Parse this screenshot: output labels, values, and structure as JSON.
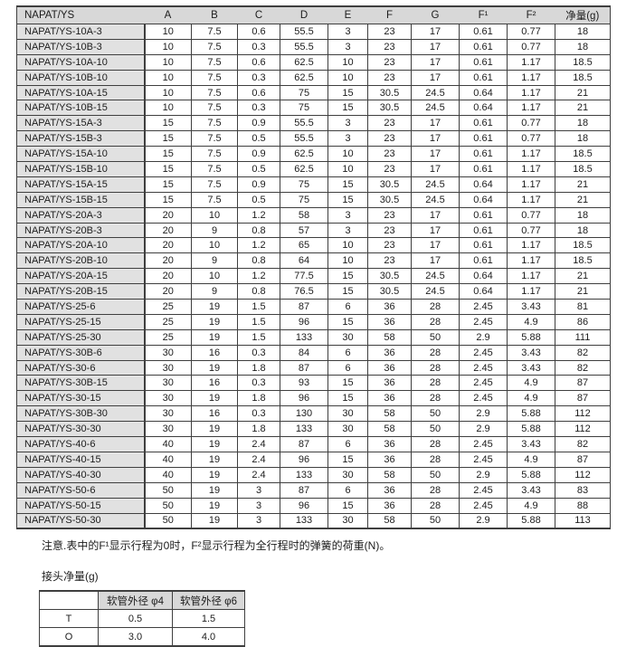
{
  "colors": {
    "header_bg": "#d8d8d8",
    "row_label_bg": "#e1e1e1",
    "border": "#3f3f3f",
    "page_bg": "#ffffff"
  },
  "main_table": {
    "corner_header": "NAPAT/YS",
    "column_headers": [
      "A",
      "B",
      "C",
      "D",
      "E",
      "F",
      "G",
      "F¹",
      "F²",
      "净量(g)"
    ],
    "rows": [
      [
        "NAPAT/YS-10A-3",
        "10",
        "7.5",
        "0.6",
        "55.5",
        "3",
        "23",
        "17",
        "0.61",
        "0.77",
        "18"
      ],
      [
        "NAPAT/YS-10B-3",
        "10",
        "7.5",
        "0.3",
        "55.5",
        "3",
        "23",
        "17",
        "0.61",
        "0.77",
        "18"
      ],
      [
        "NAPAT/YS-10A-10",
        "10",
        "7.5",
        "0.6",
        "62.5",
        "10",
        "23",
        "17",
        "0.61",
        "1.17",
        "18.5"
      ],
      [
        "NAPAT/YS-10B-10",
        "10",
        "7.5",
        "0.3",
        "62.5",
        "10",
        "23",
        "17",
        "0.61",
        "1.17",
        "18.5"
      ],
      [
        "NAPAT/YS-10A-15",
        "10",
        "7.5",
        "0.6",
        "75",
        "15",
        "30.5",
        "24.5",
        "0.64",
        "1.17",
        "21"
      ],
      [
        "NAPAT/YS-10B-15",
        "10",
        "7.5",
        "0.3",
        "75",
        "15",
        "30.5",
        "24.5",
        "0.64",
        "1.17",
        "21"
      ],
      [
        "NAPAT/YS-15A-3",
        "15",
        "7.5",
        "0.9",
        "55.5",
        "3",
        "23",
        "17",
        "0.61",
        "0.77",
        "18"
      ],
      [
        "NAPAT/YS-15B-3",
        "15",
        "7.5",
        "0.5",
        "55.5",
        "3",
        "23",
        "17",
        "0.61",
        "0.77",
        "18"
      ],
      [
        "NAPAT/YS-15A-10",
        "15",
        "7.5",
        "0.9",
        "62.5",
        "10",
        "23",
        "17",
        "0.61",
        "1.17",
        "18.5"
      ],
      [
        "NAPAT/YS-15B-10",
        "15",
        "7.5",
        "0.5",
        "62.5",
        "10",
        "23",
        "17",
        "0.61",
        "1.17",
        "18.5"
      ],
      [
        "NAPAT/YS-15A-15",
        "15",
        "7.5",
        "0.9",
        "75",
        "15",
        "30.5",
        "24.5",
        "0.64",
        "1.17",
        "21"
      ],
      [
        "NAPAT/YS-15B-15",
        "15",
        "7.5",
        "0.5",
        "75",
        "15",
        "30.5",
        "24.5",
        "0.64",
        "1.17",
        "21"
      ],
      [
        "NAPAT/YS-20A-3",
        "20",
        "10",
        "1.2",
        "58",
        "3",
        "23",
        "17",
        "0.61",
        "0.77",
        "18"
      ],
      [
        "NAPAT/YS-20B-3",
        "20",
        "9",
        "0.8",
        "57",
        "3",
        "23",
        "17",
        "0.61",
        "0.77",
        "18"
      ],
      [
        "NAPAT/YS-20A-10",
        "20",
        "10",
        "1.2",
        "65",
        "10",
        "23",
        "17",
        "0.61",
        "1.17",
        "18.5"
      ],
      [
        "NAPAT/YS-20B-10",
        "20",
        "9",
        "0.8",
        "64",
        "10",
        "23",
        "17",
        "0.61",
        "1.17",
        "18.5"
      ],
      [
        "NAPAT/YS-20A-15",
        "20",
        "10",
        "1.2",
        "77.5",
        "15",
        "30.5",
        "24.5",
        "0.64",
        "1.17",
        "21"
      ],
      [
        "NAPAT/YS-20B-15",
        "20",
        "9",
        "0.8",
        "76.5",
        "15",
        "30.5",
        "24.5",
        "0.64",
        "1.17",
        "21"
      ],
      [
        "NAPAT/YS-25-6",
        "25",
        "19",
        "1.5",
        "87",
        "6",
        "36",
        "28",
        "2.45",
        "3.43",
        "81"
      ],
      [
        "NAPAT/YS-25-15",
        "25",
        "19",
        "1.5",
        "96",
        "15",
        "36",
        "28",
        "2.45",
        "4.9",
        "86"
      ],
      [
        "NAPAT/YS-25-30",
        "25",
        "19",
        "1.5",
        "133",
        "30",
        "58",
        "50",
        "2.9",
        "5.88",
        "111"
      ],
      [
        "NAPAT/YS-30B-6",
        "30",
        "16",
        "0.3",
        "84",
        "6",
        "36",
        "28",
        "2.45",
        "3.43",
        "82"
      ],
      [
        "NAPAT/YS-30-6",
        "30",
        "19",
        "1.8",
        "87",
        "6",
        "36",
        "28",
        "2.45",
        "3.43",
        "82"
      ],
      [
        "NAPAT/YS-30B-15",
        "30",
        "16",
        "0.3",
        "93",
        "15",
        "36",
        "28",
        "2.45",
        "4.9",
        "87"
      ],
      [
        "NAPAT/YS-30-15",
        "30",
        "19",
        "1.8",
        "96",
        "15",
        "36",
        "28",
        "2.45",
        "4.9",
        "87"
      ],
      [
        "NAPAT/YS-30B-30",
        "30",
        "16",
        "0.3",
        "130",
        "30",
        "58",
        "50",
        "2.9",
        "5.88",
        "112"
      ],
      [
        "NAPAT/YS-30-30",
        "30",
        "19",
        "1.8",
        "133",
        "30",
        "58",
        "50",
        "2.9",
        "5.88",
        "112"
      ],
      [
        "NAPAT/YS-40-6",
        "40",
        "19",
        "2.4",
        "87",
        "6",
        "36",
        "28",
        "2.45",
        "3.43",
        "82"
      ],
      [
        "NAPAT/YS-40-15",
        "40",
        "19",
        "2.4",
        "96",
        "15",
        "36",
        "28",
        "2.45",
        "4.9",
        "87"
      ],
      [
        "NAPAT/YS-40-30",
        "40",
        "19",
        "2.4",
        "133",
        "30",
        "58",
        "50",
        "2.9",
        "5.88",
        "112"
      ],
      [
        "NAPAT/YS-50-6",
        "50",
        "19",
        "3",
        "87",
        "6",
        "36",
        "28",
        "2.45",
        "3.43",
        "83"
      ],
      [
        "NAPAT/YS-50-15",
        "50",
        "19",
        "3",
        "96",
        "15",
        "36",
        "28",
        "2.45",
        "4.9",
        "88"
      ],
      [
        "NAPAT/YS-50-30",
        "50",
        "19",
        "3",
        "133",
        "30",
        "58",
        "50",
        "2.9",
        "5.88",
        "113"
      ]
    ]
  },
  "note": "注意.表中的F¹显示行程为0时，F²显示行程为全行程时的弹簧的荷重(N)。",
  "fitting_weight": {
    "title": "接头净量(g)",
    "column_headers": [
      "软管外径 φ4",
      "软管外径 φ6"
    ],
    "rows": [
      {
        "label": "T",
        "values": [
          "0.5",
          "1.5"
        ]
      },
      {
        "label": "O",
        "values": [
          "3.0",
          "4.0"
        ]
      }
    ]
  }
}
